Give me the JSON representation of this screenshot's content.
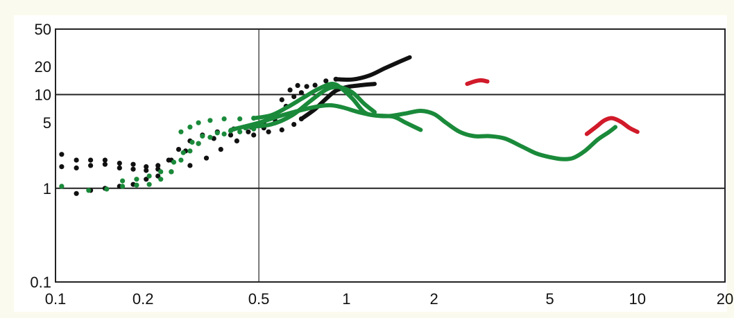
{
  "chart_data": {
    "type": "line",
    "title": "",
    "xlabel": "",
    "ylabel": "",
    "x_scale": "log",
    "y_scale": "log",
    "xlim": [
      0.1,
      20
    ],
    "ylim": [
      0.1,
      50
    ],
    "x_ticks": [
      0.1,
      0.2,
      0.5,
      1,
      2,
      5,
      10,
      20
    ],
    "x_tick_labels": [
      "0.1",
      "0.2",
      "0.5",
      "1",
      "2",
      "5",
      "10",
      "20"
    ],
    "y_ticks": [
      0.1,
      1,
      5,
      10,
      20,
      50
    ],
    "y_tick_labels": [
      "0.1",
      "1",
      "5",
      "10",
      "20",
      "50"
    ],
    "gridlines": {
      "x": [
        0.5
      ],
      "y": [
        1,
        10
      ]
    },
    "legend": "none",
    "series": [
      {
        "color": "#111111",
        "style": "dots",
        "points": [
          [
            0.105,
            2.3
          ],
          [
            0.118,
            2.0
          ],
          [
            0.132,
            2.0
          ],
          [
            0.148,
            2.0
          ],
          [
            0.166,
            1.85
          ],
          [
            0.185,
            1.8
          ],
          [
            0.205,
            1.7
          ],
          [
            0.225,
            1.75
          ],
          [
            0.245,
            2.0
          ],
          [
            0.265,
            2.6
          ],
          [
            0.29,
            3.2
          ],
          [
            0.32,
            3.7
          ],
          [
            0.36,
            4.0
          ],
          [
            0.41,
            4.3
          ],
          [
            0.47,
            4.5
          ],
          [
            0.52,
            4.9
          ],
          [
            0.56,
            6.0
          ],
          [
            0.6,
            8.8
          ],
          [
            0.64,
            11.2
          ],
          [
            0.68,
            12.5
          ],
          [
            0.73,
            12.2
          ],
          [
            0.78,
            12.6
          ],
          [
            0.85,
            14.0
          ],
          [
            0.92,
            14.6
          ]
        ]
      },
      {
        "color": "#111111",
        "style": "dots",
        "points": [
          [
            0.105,
            1.7
          ],
          [
            0.118,
            1.65
          ],
          [
            0.132,
            1.75
          ],
          [
            0.148,
            1.8
          ],
          [
            0.166,
            1.65
          ],
          [
            0.185,
            1.6
          ],
          [
            0.205,
            1.55
          ],
          [
            0.225,
            1.6
          ],
          [
            0.25,
            2.0
          ],
          [
            0.28,
            2.5
          ],
          [
            0.31,
            3.0
          ],
          [
            0.35,
            3.4
          ],
          [
            0.4,
            3.7
          ],
          [
            0.46,
            4.0
          ],
          [
            0.52,
            4.4
          ],
          [
            0.57,
            5.2
          ],
          [
            0.62,
            7.5
          ],
          [
            0.66,
            9.5
          ],
          [
            0.7,
            10.5
          ]
        ]
      },
      {
        "color": "#111111",
        "style": "dots",
        "points": [
          [
            0.118,
            0.88
          ],
          [
            0.132,
            0.95
          ],
          [
            0.148,
            1.0
          ],
          [
            0.166,
            1.05
          ],
          [
            0.185,
            1.1
          ],
          [
            0.205,
            1.25
          ],
          [
            0.225,
            1.35
          ],
          [
            0.25,
            1.5
          ],
          [
            0.29,
            1.75
          ],
          [
            0.33,
            2.1
          ],
          [
            0.37,
            2.6
          ],
          [
            0.42,
            3.2
          ],
          [
            0.48,
            3.7
          ],
          [
            0.54,
            4.0
          ],
          [
            0.6,
            4.2
          ],
          [
            0.66,
            4.8
          ],
          [
            0.7,
            5.5
          ]
        ]
      },
      {
        "color": "#111111",
        "style": "line",
        "points": [
          [
            0.7,
            5.5
          ],
          [
            0.78,
            7.0
          ],
          [
            0.85,
            9.0
          ],
          [
            0.92,
            11.0
          ],
          [
            1.0,
            12.0
          ],
          [
            1.1,
            12.5
          ],
          [
            1.25,
            13.0
          ]
        ]
      },
      {
        "color": "#111111",
        "style": "line",
        "points": [
          [
            0.92,
            14.6
          ],
          [
            1.05,
            14.5
          ],
          [
            1.2,
            16.0
          ],
          [
            1.35,
            19.0
          ],
          [
            1.5,
            22.0
          ],
          [
            1.65,
            25.0
          ]
        ]
      },
      {
        "color": "#1a8a3a",
        "style": "dots",
        "points": [
          [
            0.105,
            1.05
          ],
          [
            0.13,
            0.95
          ],
          [
            0.15,
            0.98
          ],
          [
            0.17,
            1.05
          ],
          [
            0.19,
            1.08
          ],
          [
            0.21,
            1.1
          ],
          [
            0.23,
            1.25
          ],
          [
            0.25,
            1.5
          ],
          [
            0.27,
            2.0
          ],
          [
            0.29,
            2.5
          ],
          [
            0.31,
            3.0
          ],
          [
            0.34,
            3.5
          ],
          [
            0.38,
            3.8
          ],
          [
            0.43,
            4.0
          ],
          [
            0.48,
            4.3
          ]
        ]
      },
      {
        "color": "#1a8a3a",
        "style": "dots",
        "points": [
          [
            0.17,
            1.2
          ],
          [
            0.19,
            1.25
          ],
          [
            0.21,
            1.35
          ],
          [
            0.23,
            1.5
          ],
          [
            0.255,
            1.9
          ],
          [
            0.275,
            2.4
          ],
          [
            0.295,
            3.1
          ],
          [
            0.32,
            3.6
          ],
          [
            0.36,
            3.9
          ],
          [
            0.4,
            4.1
          ],
          [
            0.45,
            4.4
          ],
          [
            0.5,
            4.8
          ]
        ]
      },
      {
        "color": "#1a8a3a",
        "style": "dots",
        "points": [
          [
            0.27,
            4.0
          ],
          [
            0.29,
            4.5
          ],
          [
            0.31,
            5.0
          ],
          [
            0.34,
            5.3
          ],
          [
            0.38,
            5.5
          ],
          [
            0.43,
            5.5
          ],
          [
            0.48,
            5.6
          ]
        ]
      },
      {
        "color": "#1a8a3a",
        "style": "line",
        "points": [
          [
            0.48,
            5.6
          ],
          [
            0.55,
            6.0
          ],
          [
            0.62,
            7.2
          ],
          [
            0.7,
            9.0
          ],
          [
            0.78,
            11.0
          ],
          [
            0.85,
            12.5
          ],
          [
            0.9,
            13.0
          ],
          [
            0.95,
            12.0
          ],
          [
            1.05,
            9.0
          ],
          [
            1.15,
            6.5
          ],
          [
            1.25,
            6.0
          ],
          [
            1.45,
            5.8
          ],
          [
            1.6,
            5.0
          ],
          [
            1.8,
            4.2
          ]
        ]
      },
      {
        "color": "#1a8a3a",
        "style": "line",
        "points": [
          [
            0.4,
            4.2
          ],
          [
            0.5,
            5.0
          ],
          [
            0.6,
            6.0
          ],
          [
            0.75,
            7.2
          ],
          [
            0.87,
            7.7
          ],
          [
            0.97,
            7.3
          ],
          [
            1.1,
            6.5
          ],
          [
            1.25,
            6.0
          ],
          [
            1.4,
            5.9
          ],
          [
            1.6,
            6.3
          ],
          [
            1.8,
            6.7
          ],
          [
            2.0,
            6.2
          ],
          [
            2.2,
            5.0
          ],
          [
            2.45,
            4.0
          ],
          [
            2.75,
            3.6
          ],
          [
            3.1,
            3.6
          ],
          [
            3.5,
            3.4
          ],
          [
            4.0,
            2.8
          ],
          [
            4.5,
            2.35
          ],
          [
            5.0,
            2.15
          ],
          [
            5.5,
            2.05
          ],
          [
            6.0,
            2.1
          ],
          [
            6.6,
            2.5
          ],
          [
            7.3,
            3.3
          ],
          [
            8.0,
            4.0
          ],
          [
            8.4,
            4.5
          ]
        ]
      },
      {
        "color": "#1a8a3a",
        "style": "line",
        "points": [
          [
            0.45,
            4.5
          ],
          [
            0.55,
            4.8
          ],
          [
            0.65,
            6.0
          ],
          [
            0.75,
            8.5
          ],
          [
            0.82,
            10.5
          ],
          [
            0.88,
            11.8
          ],
          [
            0.95,
            12.0
          ],
          [
            1.05,
            10.5
          ],
          [
            1.15,
            8.0
          ],
          [
            1.25,
            6.5
          ]
        ]
      },
      {
        "color": "#d11a2a",
        "style": "line",
        "points": [
          [
            2.6,
            13.0
          ],
          [
            2.75,
            13.8
          ],
          [
            2.9,
            14.2
          ],
          [
            3.05,
            13.8
          ]
        ]
      },
      {
        "color": "#d11a2a",
        "style": "line",
        "points": [
          [
            6.7,
            3.8
          ],
          [
            7.2,
            4.5
          ],
          [
            7.7,
            5.3
          ],
          [
            8.2,
            5.6
          ],
          [
            8.8,
            5.1
          ],
          [
            9.4,
            4.4
          ],
          [
            10.0,
            4.0
          ]
        ]
      }
    ]
  }
}
